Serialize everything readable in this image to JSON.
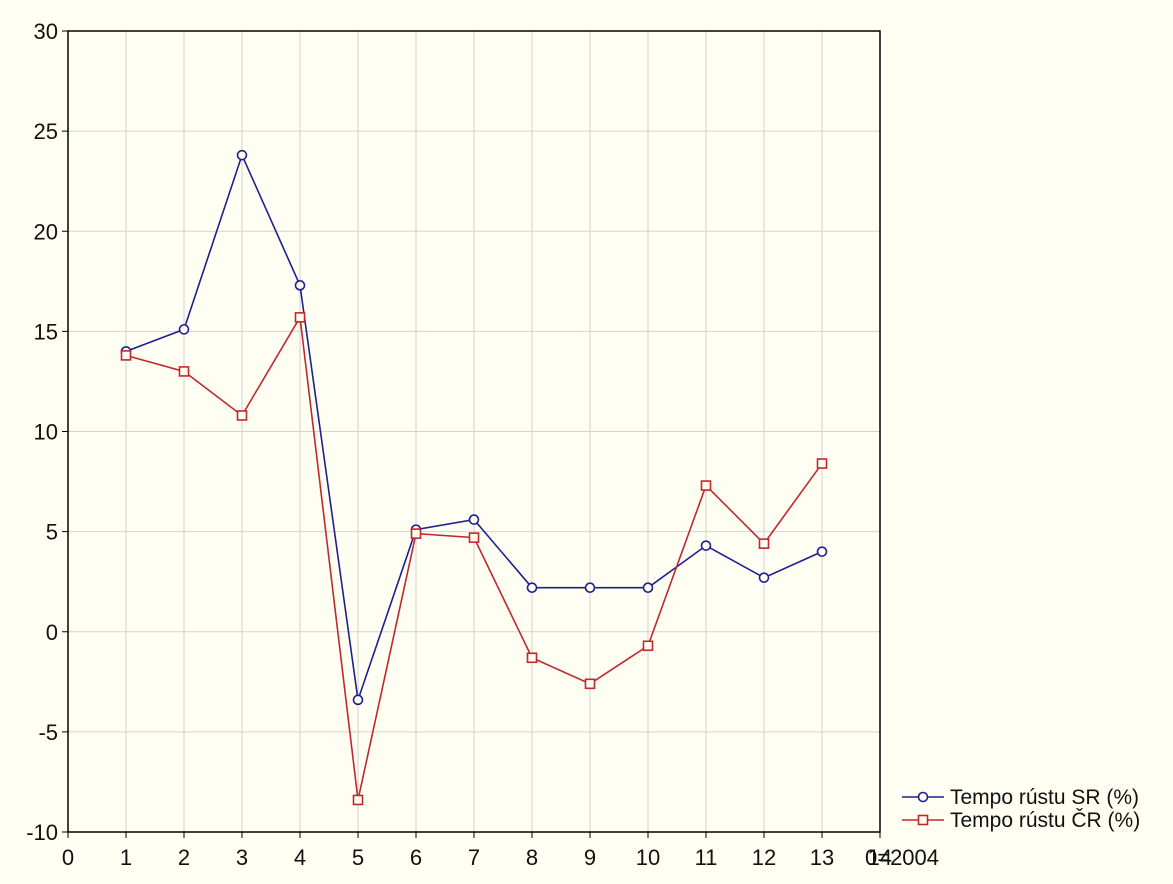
{
  "chart_data": {
    "type": "line",
    "title": "",
    "xlabel": "",
    "ylabel": "",
    "x": [
      1,
      2,
      3,
      4,
      5,
      6,
      7,
      8,
      9,
      10,
      11,
      12,
      13
    ],
    "xlim": [
      0,
      14
    ],
    "ylim": [
      -10,
      30
    ],
    "x_ticks": [
      "0",
      "1",
      "2",
      "3",
      "4",
      "5",
      "6",
      "7",
      "8",
      "9",
      "10",
      "11",
      "12",
      "13",
      "14"
    ],
    "x_axis_note": "0=2004",
    "y_ticks": [
      "-10",
      "-5",
      "0",
      "5",
      "10",
      "15",
      "20",
      "25",
      "30"
    ],
    "grid": true,
    "legend_position": "bottom-right, outside plot",
    "series": [
      {
        "name": "Tempo rústu SR (%)",
        "color": "#1f1f8f",
        "marker": "circle",
        "values": [
          14.0,
          15.1,
          23.8,
          17.3,
          -3.4,
          5.1,
          5.6,
          2.2,
          2.2,
          2.2,
          4.3,
          2.7,
          4.0
        ]
      },
      {
        "name": "Tempo rústu ČR (%)",
        "color": "#c0282e",
        "marker": "square",
        "values": [
          13.8,
          13.0,
          10.8,
          15.7,
          -8.4,
          4.9,
          4.7,
          -1.3,
          -2.6,
          -0.7,
          7.3,
          4.4,
          8.4
        ]
      }
    ]
  }
}
